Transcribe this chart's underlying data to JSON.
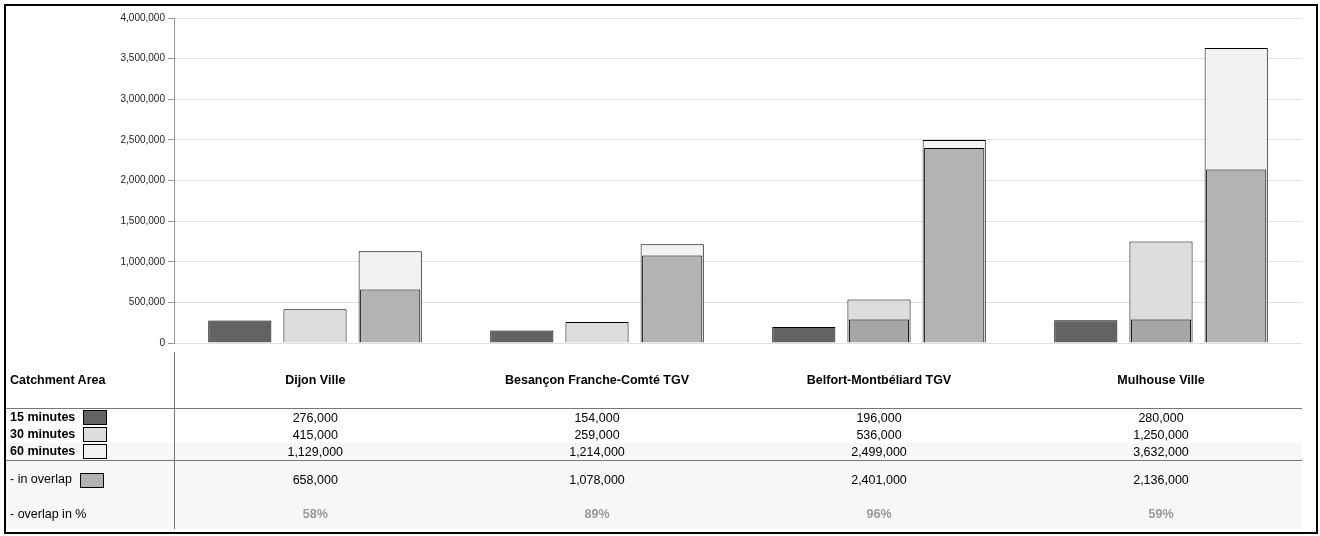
{
  "chart_data": {
    "type": "bar",
    "legend_title": "Catchment Area",
    "legend": "bottom",
    "grid": "y",
    "categories": [
      "Dijon Ville",
      "Besançon Franche-Comté TGV",
      "Belfort-Montbéliard TGV",
      "Mulhouse Ville"
    ],
    "ylim": [
      0,
      4000000
    ],
    "yticks": [
      0,
      {
        "value": 500000,
        "label": "500,000"
      },
      {
        "value": 1000000,
        "label": "1,000,000"
      },
      {
        "value": 1500000,
        "label": "1,500,000"
      },
      {
        "value": 2000000,
        "label": "2,000,000"
      },
      {
        "value": 2500000,
        "label": "2,500,000"
      },
      {
        "value": 3000000,
        "label": "3,000,000"
      },
      {
        "value": 3500000,
        "label": "3,500,000"
      },
      {
        "value": 4000000,
        "label": "4,000,000"
      }
    ],
    "series": [
      {
        "name": "15 minutes",
        "color": "#636363",
        "values": [
          276000,
          154000,
          196000,
          280000
        ],
        "value_labels": [
          "276,000",
          "154,000",
          "196,000",
          "280,000"
        ]
      },
      {
        "name": "30 minutes",
        "color": "#dddddd",
        "values": [
          415000,
          259000,
          536000,
          1250000
        ],
        "value_labels": [
          "415,000",
          "259,000",
          "536,000",
          "1,250,000"
        ]
      },
      {
        "name": "60 minutes",
        "color": "#f2f2f2",
        "values": [
          1129000,
          1214000,
          2499000,
          3632000
        ],
        "value_labels": [
          "1,129,000",
          "1,214,000",
          "2,499,000",
          "3,632,000"
        ]
      },
      {
        "name": " - in overlap",
        "color": "#b3b3b3",
        "values": [
          658000,
          1078000,
          2401000,
          2136000
        ],
        "value_labels": [
          "658,000",
          "1,078,000",
          "2,401,000",
          "2,136,000"
        ]
      },
      {
        "color": "#a6a6a6",
        "values": [
          null,
          null,
          290000,
          290000
        ]
      }
    ],
    "annotations": [
      " - overlap in %",
      "58%",
      "89%",
      "96%",
      "59%"
    ]
  }
}
